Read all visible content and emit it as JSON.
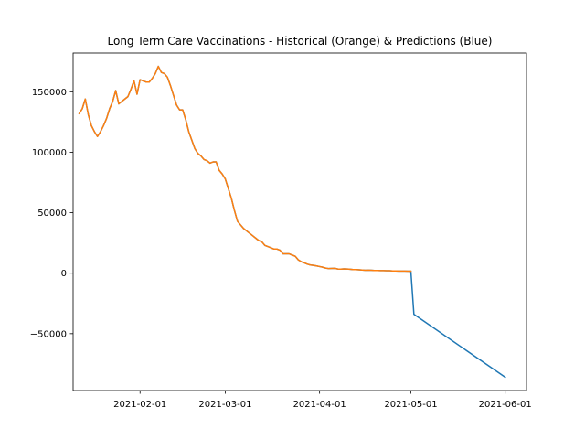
{
  "chart_data": {
    "type": "line",
    "title": "Long Term Care Vaccinations - Historical (Orange) & Predictions (Blue)",
    "xlabel": "",
    "ylabel": "",
    "x_axis_type": "date",
    "xlim": [
      "2021-01-10",
      "2021-06-08"
    ],
    "ylim": [
      -97000,
      182000
    ],
    "x_ticks": [
      "2021-02-01",
      "2021-03-01",
      "2021-04-01",
      "2021-05-01",
      "2021-06-01"
    ],
    "y_ticks": [
      -50000,
      0,
      50000,
      100000,
      150000
    ],
    "y_tick_labels": [
      "−50000",
      "0",
      "50000",
      "100000",
      "150000"
    ],
    "grid": false,
    "legend": "none",
    "series": [
      {
        "color": "#1f77b4",
        "points": [
          [
            "2021-01-12",
            132000
          ],
          [
            "2021-01-13",
            136000
          ],
          [
            "2021-01-14",
            144000
          ],
          [
            "2021-01-15",
            131000
          ],
          [
            "2021-01-16",
            122000
          ],
          [
            "2021-01-17",
            117000
          ],
          [
            "2021-01-18",
            113000
          ],
          [
            "2021-01-19",
            117000
          ],
          [
            "2021-01-20",
            122000
          ],
          [
            "2021-01-21",
            128000
          ],
          [
            "2021-01-22",
            136000
          ],
          [
            "2021-01-23",
            142000
          ],
          [
            "2021-01-24",
            151000
          ],
          [
            "2021-01-25",
            140000
          ],
          [
            "2021-01-26",
            142000
          ],
          [
            "2021-01-27",
            144000
          ],
          [
            "2021-01-28",
            146000
          ],
          [
            "2021-01-29",
            152000
          ],
          [
            "2021-01-30",
            159000
          ],
          [
            "2021-01-31",
            148000
          ],
          [
            "2021-02-01",
            160000
          ],
          [
            "2021-02-02",
            159000
          ],
          [
            "2021-02-03",
            158000
          ],
          [
            "2021-02-04",
            158000
          ],
          [
            "2021-02-05",
            161000
          ],
          [
            "2021-02-06",
            165000
          ],
          [
            "2021-02-07",
            171000
          ],
          [
            "2021-02-08",
            166000
          ],
          [
            "2021-02-09",
            165000
          ],
          [
            "2021-02-10",
            162000
          ],
          [
            "2021-02-11",
            155000
          ],
          [
            "2021-02-12",
            147000
          ],
          [
            "2021-02-13",
            139000
          ],
          [
            "2021-02-14",
            135000
          ],
          [
            "2021-02-15",
            135000
          ],
          [
            "2021-02-16",
            127000
          ],
          [
            "2021-02-17",
            117000
          ],
          [
            "2021-02-18",
            110000
          ],
          [
            "2021-02-19",
            103000
          ],
          [
            "2021-02-20",
            99000
          ],
          [
            "2021-02-21",
            97000
          ],
          [
            "2021-02-22",
            94000
          ],
          [
            "2021-02-23",
            93000
          ],
          [
            "2021-02-24",
            91000
          ],
          [
            "2021-02-25",
            92000
          ],
          [
            "2021-02-26",
            92000
          ],
          [
            "2021-02-27",
            85000
          ],
          [
            "2021-02-28",
            82000
          ],
          [
            "2021-03-01",
            78000
          ],
          [
            "2021-03-02",
            70000
          ],
          [
            "2021-03-03",
            62000
          ],
          [
            "2021-03-04",
            52000
          ],
          [
            "2021-03-05",
            43000
          ],
          [
            "2021-03-06",
            40000
          ],
          [
            "2021-03-07",
            37000
          ],
          [
            "2021-03-08",
            35000
          ],
          [
            "2021-03-09",
            33000
          ],
          [
            "2021-03-10",
            31000
          ],
          [
            "2021-03-11",
            29000
          ],
          [
            "2021-03-12",
            27000
          ],
          [
            "2021-03-13",
            26000
          ],
          [
            "2021-03-14",
            23000
          ],
          [
            "2021-03-15",
            22000
          ],
          [
            "2021-03-16",
            21000
          ],
          [
            "2021-03-17",
            20000
          ],
          [
            "2021-03-18",
            20000
          ],
          [
            "2021-03-19",
            19000
          ],
          [
            "2021-03-20",
            16000
          ],
          [
            "2021-03-21",
            16000
          ],
          [
            "2021-03-22",
            16000
          ],
          [
            "2021-03-23",
            15000
          ],
          [
            "2021-03-24",
            14000
          ],
          [
            "2021-03-25",
            11000
          ],
          [
            "2021-03-26",
            9500
          ],
          [
            "2021-03-27",
            8500
          ],
          [
            "2021-03-28",
            7500
          ],
          [
            "2021-03-29",
            6800
          ],
          [
            "2021-03-30",
            6500
          ],
          [
            "2021-03-31",
            6000
          ],
          [
            "2021-04-01",
            5500
          ],
          [
            "2021-04-02",
            5000
          ],
          [
            "2021-04-03",
            4200
          ],
          [
            "2021-04-04",
            3800
          ],
          [
            "2021-04-05",
            3900
          ],
          [
            "2021-04-06",
            4000
          ],
          [
            "2021-04-07",
            3500
          ],
          [
            "2021-04-08",
            3400
          ],
          [
            "2021-04-09",
            3600
          ],
          [
            "2021-04-10",
            3500
          ],
          [
            "2021-04-11",
            3300
          ],
          [
            "2021-04-12",
            3000
          ],
          [
            "2021-04-13",
            3000
          ],
          [
            "2021-04-14",
            2800
          ],
          [
            "2021-04-15",
            2600
          ],
          [
            "2021-04-16",
            2400
          ],
          [
            "2021-04-17",
            2500
          ],
          [
            "2021-04-18",
            2400
          ],
          [
            "2021-04-19",
            2200
          ],
          [
            "2021-04-20",
            2200
          ],
          [
            "2021-04-21",
            2100
          ],
          [
            "2021-04-22",
            2100
          ],
          [
            "2021-04-23",
            2000
          ],
          [
            "2021-04-24",
            2000
          ],
          [
            "2021-04-25",
            1900
          ],
          [
            "2021-04-26",
            1900
          ],
          [
            "2021-04-27",
            1800
          ],
          [
            "2021-04-28",
            1800
          ],
          [
            "2021-04-29",
            1800
          ],
          [
            "2021-04-30",
            1700
          ],
          [
            "2021-05-01",
            1700
          ],
          [
            "2021-05-02",
            -34000
          ],
          [
            "2021-06-01",
            -86000
          ]
        ]
      },
      {
        "color": "#ff7f0e",
        "points": [
          [
            "2021-01-12",
            132000
          ],
          [
            "2021-01-13",
            136000
          ],
          [
            "2021-01-14",
            144000
          ],
          [
            "2021-01-15",
            131000
          ],
          [
            "2021-01-16",
            122000
          ],
          [
            "2021-01-17",
            117000
          ],
          [
            "2021-01-18",
            113000
          ],
          [
            "2021-01-19",
            117000
          ],
          [
            "2021-01-20",
            122000
          ],
          [
            "2021-01-21",
            128000
          ],
          [
            "2021-01-22",
            136000
          ],
          [
            "2021-01-23",
            142000
          ],
          [
            "2021-01-24",
            151000
          ],
          [
            "2021-01-25",
            140000
          ],
          [
            "2021-01-26",
            142000
          ],
          [
            "2021-01-27",
            144000
          ],
          [
            "2021-01-28",
            146000
          ],
          [
            "2021-01-29",
            152000
          ],
          [
            "2021-01-30",
            159000
          ],
          [
            "2021-01-31",
            148000
          ],
          [
            "2021-02-01",
            160000
          ],
          [
            "2021-02-02",
            159000
          ],
          [
            "2021-02-03",
            158000
          ],
          [
            "2021-02-04",
            158000
          ],
          [
            "2021-02-05",
            161000
          ],
          [
            "2021-02-06",
            165000
          ],
          [
            "2021-02-07",
            171000
          ],
          [
            "2021-02-08",
            166000
          ],
          [
            "2021-02-09",
            165000
          ],
          [
            "2021-02-10",
            162000
          ],
          [
            "2021-02-11",
            155000
          ],
          [
            "2021-02-12",
            147000
          ],
          [
            "2021-02-13",
            139000
          ],
          [
            "2021-02-14",
            135000
          ],
          [
            "2021-02-15",
            135000
          ],
          [
            "2021-02-16",
            127000
          ],
          [
            "2021-02-17",
            117000
          ],
          [
            "2021-02-18",
            110000
          ],
          [
            "2021-02-19",
            103000
          ],
          [
            "2021-02-20",
            99000
          ],
          [
            "2021-02-21",
            97000
          ],
          [
            "2021-02-22",
            94000
          ],
          [
            "2021-02-23",
            93000
          ],
          [
            "2021-02-24",
            91000
          ],
          [
            "2021-02-25",
            92000
          ],
          [
            "2021-02-26",
            92000
          ],
          [
            "2021-02-27",
            85000
          ],
          [
            "2021-02-28",
            82000
          ],
          [
            "2021-03-01",
            78000
          ],
          [
            "2021-03-02",
            70000
          ],
          [
            "2021-03-03",
            62000
          ],
          [
            "2021-03-04",
            52000
          ],
          [
            "2021-03-05",
            43000
          ],
          [
            "2021-03-06",
            40000
          ],
          [
            "2021-03-07",
            37000
          ],
          [
            "2021-03-08",
            35000
          ],
          [
            "2021-03-09",
            33000
          ],
          [
            "2021-03-10",
            31000
          ],
          [
            "2021-03-11",
            29000
          ],
          [
            "2021-03-12",
            27000
          ],
          [
            "2021-03-13",
            26000
          ],
          [
            "2021-03-14",
            23000
          ],
          [
            "2021-03-15",
            22000
          ],
          [
            "2021-03-16",
            21000
          ],
          [
            "2021-03-17",
            20000
          ],
          [
            "2021-03-18",
            20000
          ],
          [
            "2021-03-19",
            19000
          ],
          [
            "2021-03-20",
            16000
          ],
          [
            "2021-03-21",
            16000
          ],
          [
            "2021-03-22",
            16000
          ],
          [
            "2021-03-23",
            15000
          ],
          [
            "2021-03-24",
            14000
          ],
          [
            "2021-03-25",
            11000
          ],
          [
            "2021-03-26",
            9500
          ],
          [
            "2021-03-27",
            8500
          ],
          [
            "2021-03-28",
            7500
          ],
          [
            "2021-03-29",
            6800
          ],
          [
            "2021-03-30",
            6500
          ],
          [
            "2021-03-31",
            6000
          ],
          [
            "2021-04-01",
            5500
          ],
          [
            "2021-04-02",
            5000
          ],
          [
            "2021-04-03",
            4200
          ],
          [
            "2021-04-04",
            3800
          ],
          [
            "2021-04-05",
            3900
          ],
          [
            "2021-04-06",
            4000
          ],
          [
            "2021-04-07",
            3500
          ],
          [
            "2021-04-08",
            3400
          ],
          [
            "2021-04-09",
            3600
          ],
          [
            "2021-04-10",
            3500
          ],
          [
            "2021-04-11",
            3300
          ],
          [
            "2021-04-12",
            3000
          ],
          [
            "2021-04-13",
            3000
          ],
          [
            "2021-04-14",
            2800
          ],
          [
            "2021-04-15",
            2600
          ],
          [
            "2021-04-16",
            2400
          ],
          [
            "2021-04-17",
            2500
          ],
          [
            "2021-04-18",
            2400
          ],
          [
            "2021-04-19",
            2200
          ],
          [
            "2021-04-20",
            2200
          ],
          [
            "2021-04-21",
            2100
          ],
          [
            "2021-04-22",
            2100
          ],
          [
            "2021-04-23",
            2000
          ],
          [
            "2021-04-24",
            2000
          ],
          [
            "2021-04-25",
            1900
          ],
          [
            "2021-04-26",
            1900
          ],
          [
            "2021-04-27",
            1800
          ],
          [
            "2021-04-28",
            1800
          ],
          [
            "2021-04-29",
            1800
          ],
          [
            "2021-04-30",
            1700
          ],
          [
            "2021-05-01",
            1700
          ]
        ]
      }
    ]
  }
}
